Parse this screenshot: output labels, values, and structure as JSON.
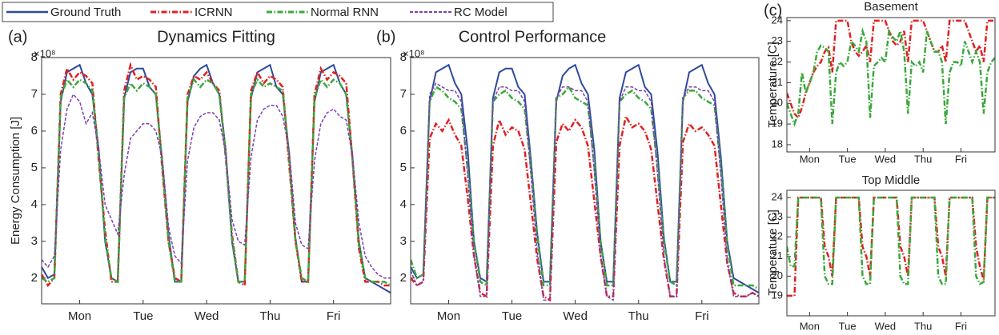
{
  "legend": {
    "series": [
      {
        "name": "Ground Truth",
        "color": "#2e4a9e",
        "linestyle": "solid"
      },
      {
        "name": "ICRNN",
        "color": "#e02020",
        "linestyle": "dash-dot"
      },
      {
        "name": "Normal RNN",
        "color": "#3aa83a",
        "linestyle": "dash-dot"
      },
      {
        "name": "RC Model",
        "color": "#7b3fb0",
        "linestyle": "dashed"
      }
    ]
  },
  "chart_data": [
    {
      "type": "line",
      "panel_label": "(a)",
      "title": "Dynamics Fitting",
      "y_label": "Energy Consumption [J]",
      "y_exponent": "×10⁸",
      "xlim": [
        0,
        5.5
      ],
      "ylim": [
        1.3,
        8
      ],
      "yticks": [
        2,
        3,
        4,
        5,
        6,
        7,
        8
      ],
      "xticks": [
        {
          "value": 0.6,
          "label": "Mon"
        },
        {
          "value": 1.6,
          "label": "Tue"
        },
        {
          "value": 2.6,
          "label": "Wed"
        },
        {
          "value": 3.6,
          "label": "Thu"
        },
        {
          "value": 4.6,
          "label": "Fri"
        }
      ],
      "x": [
        0,
        0.1,
        0.2,
        0.3,
        0.4,
        0.5,
        0.6,
        0.7,
        0.8,
        0.9,
        1,
        1.1,
        1.2,
        1.3,
        1.4,
        1.5,
        1.6,
        1.7,
        1.8,
        1.9,
        2,
        2.1,
        2.2,
        2.3,
        2.4,
        2.5,
        2.6,
        2.7,
        2.8,
        2.9,
        3,
        3.1,
        3.2,
        3.3,
        3.4,
        3.5,
        3.6,
        3.7,
        3.8,
        3.9,
        4,
        4.1,
        4.2,
        4.3,
        4.4,
        4.5,
        4.6,
        4.7,
        4.8,
        4.9,
        5,
        5.1,
        5.2,
        5.3,
        5.4,
        5.5
      ],
      "series": [
        {
          "name": "Ground Truth",
          "color": "#2e4a9e",
          "linestyle": "solid",
          "values": [
            2.3,
            2.0,
            2.1,
            6.8,
            7.6,
            7.7,
            7.8,
            7.3,
            7.0,
            5.5,
            3.0,
            2.0,
            1.9,
            6.9,
            7.6,
            7.7,
            7.7,
            7.2,
            7.0,
            5.2,
            3.2,
            1.9,
            1.9,
            6.8,
            7.5,
            7.7,
            7.8,
            7.3,
            7.0,
            5.5,
            3.0,
            1.9,
            1.9,
            6.9,
            7.6,
            7.7,
            7.8,
            7.2,
            7.0,
            5.4,
            3.1,
            1.9,
            1.9,
            6.8,
            7.6,
            7.7,
            7.8,
            7.3,
            7.0,
            5.3,
            3.0,
            2.0,
            1.9,
            1.8,
            1.7,
            1.6
          ]
        },
        {
          "name": "ICRNN",
          "color": "#e02020",
          "linestyle": "dash-dot",
          "values": [
            2.1,
            1.8,
            2.0,
            7.0,
            7.7,
            7.4,
            7.6,
            7.5,
            7.3,
            5.2,
            3.3,
            1.9,
            1.9,
            7.1,
            7.8,
            7.4,
            7.5,
            7.4,
            7.2,
            5.0,
            3.0,
            2.0,
            1.9,
            7.0,
            7.5,
            7.4,
            7.6,
            7.3,
            7.1,
            5.3,
            3.2,
            1.9,
            1.8,
            7.1,
            7.6,
            7.3,
            7.5,
            7.4,
            7.2,
            5.1,
            3.0,
            1.9,
            1.9,
            7.0,
            7.7,
            7.4,
            7.6,
            7.5,
            7.3,
            5.2,
            2.8,
            1.9,
            1.9,
            1.9,
            1.8,
            1.8
          ]
        },
        {
          "name": "Normal RNN",
          "color": "#3aa83a",
          "linestyle": "dash-dot",
          "values": [
            2.0,
            1.9,
            2.0,
            6.9,
            7.4,
            7.2,
            7.4,
            7.3,
            7.1,
            5.3,
            3.1,
            2.0,
            1.9,
            6.9,
            7.3,
            7.1,
            7.3,
            7.2,
            7.0,
            5.1,
            3.0,
            1.9,
            1.9,
            6.9,
            7.4,
            7.2,
            7.4,
            7.3,
            7.0,
            5.4,
            3.1,
            1.9,
            1.9,
            7.0,
            7.4,
            7.2,
            7.3,
            7.2,
            7.1,
            5.3,
            3.0,
            2.0,
            1.9,
            6.9,
            7.4,
            7.2,
            7.4,
            7.3,
            7.0,
            5.2,
            2.9,
            2.0,
            1.9,
            1.9,
            1.9,
            1.8
          ]
        },
        {
          "name": "RC Model",
          "color": "#7b3fb0",
          "linestyle": "dashed",
          "values": [
            2.5,
            2.3,
            2.6,
            5.5,
            6.6,
            7.0,
            6.8,
            6.2,
            6.5,
            5.5,
            4.0,
            3.6,
            3.2,
            4.8,
            5.8,
            6.0,
            6.2,
            6.2,
            6.0,
            5.3,
            3.4,
            2.6,
            2.4,
            5.2,
            6.1,
            6.4,
            6.5,
            6.5,
            6.3,
            5.4,
            3.6,
            3.0,
            2.9,
            5.3,
            6.3,
            6.6,
            6.7,
            6.7,
            6.4,
            5.5,
            3.5,
            2.9,
            2.8,
            5.2,
            6.2,
            6.5,
            6.6,
            6.4,
            6.3,
            5.3,
            3.5,
            2.6,
            2.3,
            2.1,
            2.0,
            2.0
          ]
        }
      ]
    },
    {
      "type": "line",
      "panel_label": "(b)",
      "title": "Control Performance",
      "y_exponent": "×10⁸",
      "xlim": [
        0,
        5.5
      ],
      "ylim": [
        1.3,
        8
      ],
      "yticks": [
        2,
        3,
        4,
        5,
        6,
        7,
        8
      ],
      "xticks": [
        {
          "value": 0.6,
          "label": "Mon"
        },
        {
          "value": 1.6,
          "label": "Tue"
        },
        {
          "value": 2.6,
          "label": "Wed"
        },
        {
          "value": 3.6,
          "label": "Thu"
        },
        {
          "value": 4.6,
          "label": "Fri"
        }
      ],
      "x": [
        0,
        0.1,
        0.2,
        0.3,
        0.4,
        0.5,
        0.6,
        0.7,
        0.8,
        0.9,
        1,
        1.1,
        1.2,
        1.3,
        1.4,
        1.5,
        1.6,
        1.7,
        1.8,
        1.9,
        2,
        2.1,
        2.2,
        2.3,
        2.4,
        2.5,
        2.6,
        2.7,
        2.8,
        2.9,
        3,
        3.1,
        3.2,
        3.3,
        3.4,
        3.5,
        3.6,
        3.7,
        3.8,
        3.9,
        4,
        4.1,
        4.2,
        4.3,
        4.4,
        4.5,
        4.6,
        4.7,
        4.8,
        4.9,
        5,
        5.1,
        5.2,
        5.3,
        5.4,
        5.5
      ],
      "series": [
        {
          "name": "Ground Truth",
          "color": "#2e4a9e",
          "linestyle": "solid",
          "values": [
            2.3,
            2.0,
            2.1,
            6.8,
            7.6,
            7.7,
            7.8,
            7.3,
            7.0,
            5.5,
            3.0,
            2.0,
            1.9,
            6.9,
            7.6,
            7.7,
            7.7,
            7.2,
            7.0,
            5.2,
            3.2,
            1.9,
            1.9,
            6.8,
            7.5,
            7.7,
            7.8,
            7.3,
            7.0,
            5.5,
            3.0,
            1.9,
            1.9,
            6.9,
            7.6,
            7.7,
            7.8,
            7.2,
            7.0,
            5.4,
            3.1,
            1.9,
            1.9,
            6.8,
            7.6,
            7.7,
            7.8,
            7.3,
            7.0,
            5.3,
            3.0,
            2.0,
            1.9,
            1.8,
            1.7,
            1.6
          ]
        },
        {
          "name": "ICRNN",
          "color": "#e02020",
          "linestyle": "dash-dot",
          "values": [
            2.0,
            1.8,
            1.9,
            5.8,
            6.2,
            6.0,
            6.3,
            5.9,
            5.6,
            4.2,
            2.6,
            1.6,
            1.5,
            5.6,
            6.3,
            5.9,
            6.1,
            6.0,
            5.5,
            4.0,
            2.5,
            1.5,
            1.4,
            5.7,
            6.2,
            6.0,
            6.3,
            6.1,
            5.6,
            4.1,
            2.6,
            1.5,
            1.5,
            5.6,
            6.4,
            6.1,
            6.2,
            6.0,
            5.5,
            4.0,
            2.5,
            1.5,
            1.5,
            5.7,
            6.2,
            6.0,
            6.1,
            5.9,
            5.6,
            4.0,
            2.4,
            1.6,
            1.5,
            1.5,
            1.6,
            1.5
          ]
        },
        {
          "name": "Normal RNN",
          "color": "#3aa83a",
          "linestyle": "dash-dot",
          "values": [
            2.5,
            2.0,
            2.1,
            6.8,
            7.2,
            7.1,
            6.9,
            6.8,
            6.6,
            5.0,
            3.0,
            1.9,
            1.8,
            6.8,
            7.0,
            7.1,
            6.9,
            6.8,
            6.6,
            5.0,
            3.1,
            1.8,
            1.8,
            6.9,
            7.0,
            7.2,
            6.9,
            6.8,
            6.7,
            5.1,
            3.0,
            1.8,
            1.8,
            6.8,
            7.0,
            7.1,
            6.9,
            6.8,
            6.6,
            5.0,
            3.0,
            1.9,
            1.8,
            6.9,
            7.1,
            7.1,
            6.9,
            6.8,
            6.7,
            5.0,
            2.9,
            1.8,
            1.8,
            1.8,
            1.8,
            1.7
          ]
        },
        {
          "name": "RC Model",
          "color": "#7b3fb0",
          "linestyle": "dashed",
          "values": [
            2.2,
            1.8,
            1.9,
            7.0,
            7.3,
            7.2,
            7.1,
            7.1,
            6.8,
            4.8,
            2.6,
            1.5,
            1.5,
            6.8,
            7.2,
            7.2,
            7.1,
            7.1,
            6.8,
            4.8,
            2.7,
            1.4,
            1.4,
            6.9,
            7.2,
            7.2,
            7.1,
            7.1,
            6.8,
            4.9,
            2.6,
            1.5,
            1.4,
            6.8,
            7.2,
            7.2,
            7.1,
            7.1,
            6.8,
            4.8,
            2.6,
            1.5,
            1.5,
            6.9,
            7.2,
            7.2,
            7.1,
            7.1,
            6.8,
            4.8,
            2.5,
            1.5,
            1.5,
            1.5,
            1.6,
            1.5
          ]
        }
      ]
    },
    {
      "type": "line",
      "panel_label": "(c)",
      "title": "Basement",
      "y_label": "Temperature [C]",
      "xlim": [
        0,
        5.5
      ],
      "ylim": [
        17.65,
        24.15
      ],
      "yticks": [
        18,
        19,
        20,
        21,
        22,
        23,
        24
      ],
      "xticks": [
        {
          "value": 0.6,
          "label": "Mon"
        },
        {
          "value": 1.6,
          "label": "Tue"
        },
        {
          "value": 2.6,
          "label": "Wed"
        },
        {
          "value": 3.6,
          "label": "Thu"
        },
        {
          "value": 4.6,
          "label": "Fri"
        }
      ],
      "x": [
        0,
        0.1,
        0.2,
        0.3,
        0.4,
        0.5,
        0.6,
        0.7,
        0.8,
        0.9,
        1,
        1.1,
        1.2,
        1.3,
        1.4,
        1.5,
        1.6,
        1.7,
        1.8,
        1.9,
        2,
        2.1,
        2.2,
        2.3,
        2.4,
        2.5,
        2.6,
        2.7,
        2.8,
        2.9,
        3,
        3.1,
        3.2,
        3.3,
        3.4,
        3.5,
        3.6,
        3.7,
        3.8,
        3.9,
        4,
        4.1,
        4.2,
        4.3,
        4.4,
        4.5,
        4.6,
        4.7,
        4.8,
        4.9,
        5,
        5.1,
        5.2,
        5.3,
        5.4,
        5.5
      ],
      "series": [
        {
          "name": "ICRNN",
          "color": "#e02020",
          "linestyle": "dash-dot",
          "values": [
            20.5,
            20.0,
            19.5,
            19.3,
            19.8,
            20.5,
            21.0,
            21.5,
            21.8,
            22.0,
            22.5,
            22.7,
            21.5,
            24.0,
            24.0,
            24.0,
            24.0,
            23.0,
            22.5,
            22.3,
            22.5,
            22.8,
            22.0,
            24.0,
            24.0,
            24.0,
            24.0,
            23.5,
            23.0,
            22.8,
            23.0,
            23.5,
            22.0,
            24.0,
            24.0,
            24.0,
            24.0,
            23.5,
            23.0,
            22.5,
            22.5,
            22.8,
            22.0,
            24.0,
            24.0,
            24.0,
            24.0,
            24.0,
            23.5,
            23.0,
            22.5,
            22.8,
            22.0,
            24.0,
            24.0,
            24.0
          ]
        },
        {
          "name": "Normal RNN",
          "color": "#3aa83a",
          "linestyle": "dash-dot",
          "values": [
            20.0,
            19.5,
            19.0,
            19.5,
            21.5,
            20.5,
            21.0,
            21.5,
            22.5,
            22.8,
            22.7,
            22.5,
            19.0,
            21.5,
            22.0,
            21.8,
            22.0,
            23.0,
            22.8,
            22.5,
            23.5,
            23.0,
            19.3,
            21.8,
            22.0,
            22.2,
            22.0,
            23.5,
            23.2,
            23.0,
            23.5,
            22.5,
            19.5,
            22.0,
            21.8,
            22.0,
            21.5,
            23.5,
            23.0,
            22.5,
            22.5,
            22.0,
            19.0,
            21.5,
            22.0,
            22.0,
            21.8,
            23.0,
            22.5,
            22.0,
            22.5,
            22.0,
            19.5,
            21.5,
            22.0,
            22.2
          ]
        }
      ]
    },
    {
      "type": "line",
      "title": "Top Middle",
      "y_label": "Temperature [C]",
      "xlim": [
        0,
        5.5
      ],
      "ylim": [
        17.98,
        24.37
      ],
      "yticks": [
        19,
        20,
        21,
        22,
        23,
        24
      ],
      "xticks": [
        {
          "value": 0.6,
          "label": "Mon"
        },
        {
          "value": 1.6,
          "label": "Tue"
        },
        {
          "value": 2.6,
          "label": "Wed"
        },
        {
          "value": 3.6,
          "label": "Thu"
        },
        {
          "value": 4.6,
          "label": "Fri"
        }
      ],
      "x": [
        0,
        0.1,
        0.2,
        0.3,
        0.4,
        0.5,
        0.6,
        0.7,
        0.8,
        0.9,
        1,
        1.1,
        1.2,
        1.3,
        1.4,
        1.5,
        1.6,
        1.7,
        1.8,
        1.9,
        2,
        2.1,
        2.2,
        2.3,
        2.4,
        2.5,
        2.6,
        2.7,
        2.8,
        2.9,
        3,
        3.1,
        3.2,
        3.3,
        3.4,
        3.5,
        3.6,
        3.7,
        3.8,
        3.9,
        4,
        4.1,
        4.2,
        4.3,
        4.4,
        4.5,
        4.6,
        4.7,
        4.8,
        4.9,
        5,
        5.1,
        5.2,
        5.3,
        5.4,
        5.5
      ],
      "series": [
        {
          "name": "ICRNN",
          "color": "#e02020",
          "linestyle": "dash-dot",
          "values": [
            19.0,
            19.0,
            19.0,
            24.0,
            24.0,
            24.0,
            24.0,
            24.0,
            24.0,
            24.0,
            21.5,
            21.0,
            20.0,
            24.0,
            24.0,
            24.0,
            24.0,
            24.0,
            24.0,
            24.0,
            21.5,
            21.0,
            20.0,
            24.0,
            24.0,
            24.0,
            24.0,
            24.0,
            24.0,
            24.0,
            21.5,
            21.0,
            20.0,
            24.0,
            24.0,
            24.0,
            24.0,
            24.0,
            24.0,
            24.0,
            21.5,
            21.0,
            20.0,
            24.0,
            24.0,
            24.0,
            24.0,
            24.0,
            24.0,
            24.0,
            21.5,
            20.5,
            19.8,
            24.0,
            24.0,
            24.0
          ]
        },
        {
          "name": "Normal RNN",
          "color": "#3aa83a",
          "linestyle": "dash-dot",
          "values": [
            21.5,
            20.5,
            20.5,
            24.0,
            24.0,
            24.0,
            24.0,
            24.0,
            24.0,
            24.0,
            20.0,
            19.6,
            19.6,
            24.0,
            24.0,
            24.0,
            24.0,
            24.0,
            24.0,
            24.0,
            20.0,
            19.6,
            19.6,
            24.0,
            24.0,
            24.0,
            24.0,
            24.0,
            24.0,
            24.0,
            20.0,
            19.6,
            19.6,
            24.0,
            24.0,
            24.0,
            24.0,
            24.0,
            24.0,
            24.0,
            20.0,
            19.6,
            19.6,
            24.0,
            24.0,
            24.0,
            24.0,
            24.0,
            24.0,
            24.0,
            20.0,
            19.6,
            19.7,
            24.0,
            24.0,
            24.0
          ]
        }
      ]
    }
  ]
}
